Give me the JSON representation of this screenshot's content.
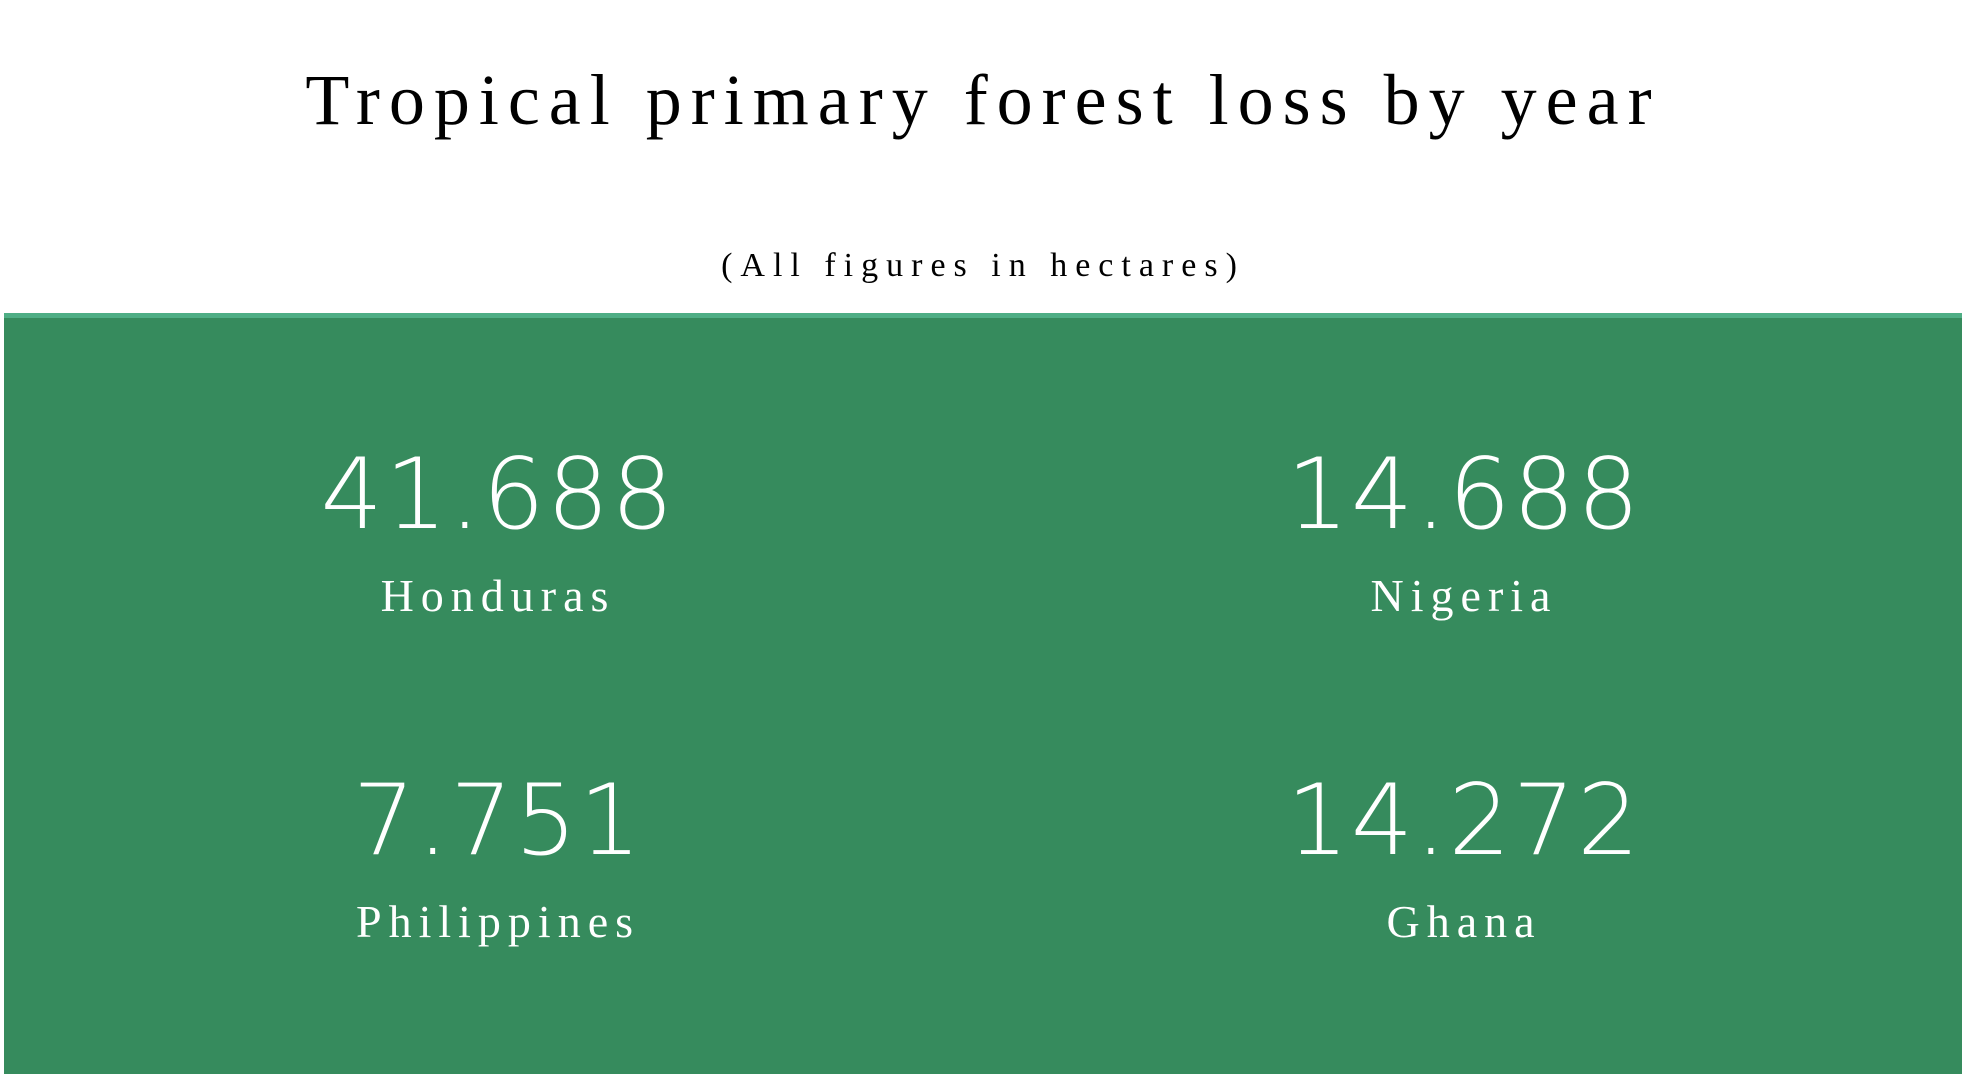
{
  "title": "Tropical primary forest loss by year",
  "subtitle": "(All figures in hectares)",
  "colors": {
    "panel_background": "#368b5d",
    "panel_top_border": "#4fae85",
    "text_on_panel": "#ffffff"
  },
  "stats": [
    {
      "value": "41.688",
      "label": "Honduras"
    },
    {
      "value": "14.688",
      "label": "Nigeria"
    },
    {
      "value": "7.751",
      "label": "Philippines"
    },
    {
      "value": "14.272",
      "label": "Ghana"
    }
  ]
}
